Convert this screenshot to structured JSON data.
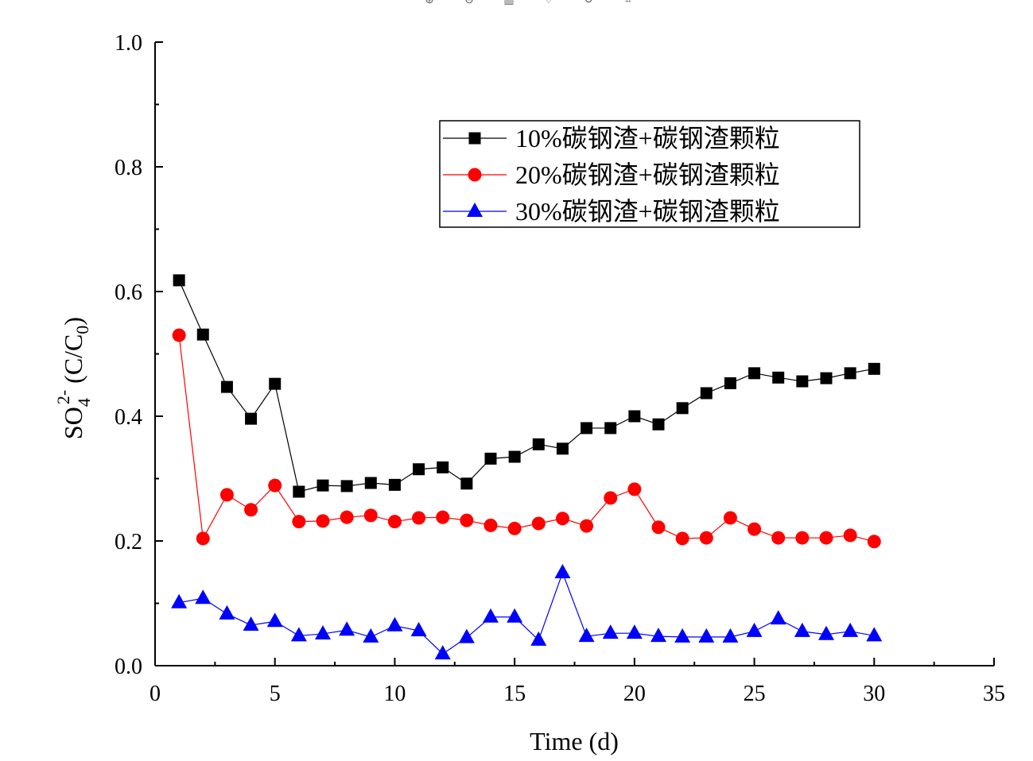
{
  "toolbar": [
    {
      "icon": "zoom-in-icon",
      "glyph": "⊕"
    },
    {
      "icon": "zoom-out-icon",
      "glyph": "⊖"
    },
    {
      "icon": "trash-icon",
      "glyph": "▥"
    },
    {
      "icon": "heart-icon",
      "glyph": "♡"
    },
    {
      "icon": "rotate-icon",
      "glyph": "↻"
    },
    {
      "icon": "crop-icon",
      "glyph": "⌗"
    }
  ],
  "chart_data": {
    "type": "line",
    "xlabel": "Time (d)",
    "ylabel": {
      "main": "SO",
      "sub": "4",
      "sup": "2-",
      "rest": " (C/C",
      "sub2": "0",
      "end": ")"
    },
    "xlim": [
      0,
      35
    ],
    "ylim": [
      0.0,
      1.0
    ],
    "xticks": [
      "0",
      "5",
      "10",
      "15",
      "20",
      "25",
      "30",
      "35"
    ],
    "yticks": [
      "0.0",
      "0.2",
      "0.4",
      "0.6",
      "0.8",
      "1.0"
    ],
    "grid": false,
    "legend_position": "top-right",
    "x": [
      1,
      2,
      3,
      4,
      5,
      6,
      7,
      8,
      9,
      10,
      11,
      12,
      13,
      14,
      15,
      16,
      17,
      18,
      19,
      20,
      21,
      22,
      23,
      24,
      25,
      26,
      27,
      28,
      29,
      30
    ],
    "series": [
      {
        "name": "10%碳钢渣+碳钢渣颗粒",
        "color": "#000000",
        "marker": "square",
        "values": [
          0.618,
          0.531,
          0.447,
          0.396,
          0.452,
          0.279,
          0.289,
          0.288,
          0.293,
          0.29,
          0.315,
          0.318,
          0.292,
          0.332,
          0.335,
          0.355,
          0.348,
          0.381,
          0.381,
          0.4,
          0.387,
          0.413,
          0.437,
          0.453,
          0.469,
          0.462,
          0.456,
          0.461,
          0.469,
          0.476
        ]
      },
      {
        "name": "20%碳钢渣+碳钢渣颗粒",
        "color": "#ff0000",
        "marker": "circle",
        "values": [
          0.53,
          0.204,
          0.274,
          0.25,
          0.289,
          0.231,
          0.232,
          0.238,
          0.241,
          0.231,
          0.237,
          0.238,
          0.233,
          0.225,
          0.22,
          0.228,
          0.236,
          0.224,
          0.269,
          0.283,
          0.222,
          0.204,
          0.205,
          0.237,
          0.219,
          0.205,
          0.205,
          0.205,
          0.209,
          0.199
        ]
      },
      {
        "name": "30%碳钢渣+碳钢渣颗粒",
        "color": "#0000ff",
        "marker": "triangle",
        "values": [
          0.101,
          0.108,
          0.083,
          0.065,
          0.071,
          0.048,
          0.051,
          0.057,
          0.046,
          0.064,
          0.056,
          0.019,
          0.045,
          0.078,
          0.078,
          0.041,
          0.149,
          0.047,
          0.052,
          0.052,
          0.047,
          0.046,
          0.046,
          0.046,
          0.055,
          0.075,
          0.055,
          0.05,
          0.055,
          0.048
        ]
      }
    ]
  }
}
